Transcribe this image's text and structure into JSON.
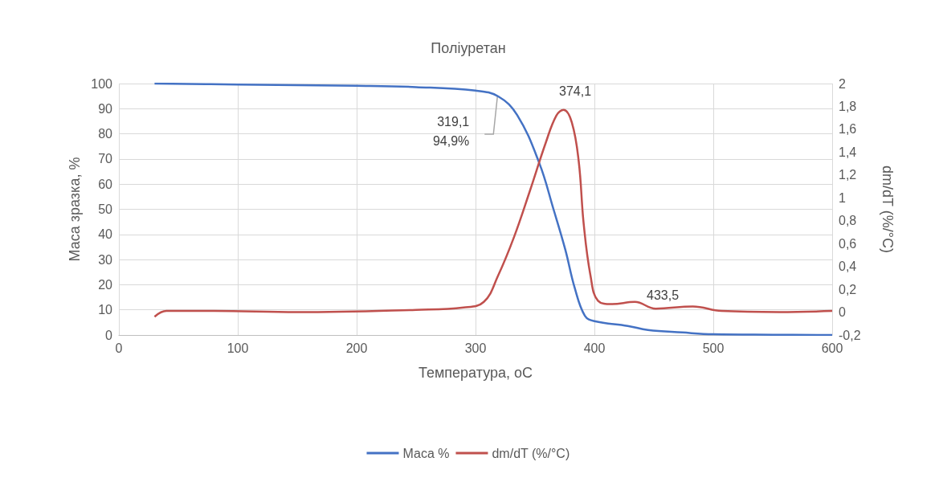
{
  "chart_data": {
    "type": "line",
    "title": "Поліуретан",
    "xlabel": "Температура, оС",
    "ylabel": "Маса зразка, %",
    "y2label": "dm/dT (%/°C)",
    "xlim": [
      0,
      600
    ],
    "xticks": [
      0,
      100,
      200,
      300,
      400,
      500,
      600
    ],
    "ylim": [
      0,
      100
    ],
    "yticks": [
      0,
      10,
      20,
      30,
      40,
      50,
      60,
      70,
      80,
      90,
      100
    ],
    "y2lim": [
      -0.2,
      2
    ],
    "y2ticks": [
      {
        "value": -0.2,
        "label": "-0,2"
      },
      0,
      {
        "value": 0.2,
        "label": "0,2"
      },
      {
        "value": 0.4,
        "label": "0,4"
      },
      {
        "value": 0.6,
        "label": "0,6"
      },
      {
        "value": 0.8,
        "label": "0,8"
      },
      1,
      {
        "value": 1.2,
        "label": "1,2"
      },
      {
        "value": 1.4,
        "label": "1,4"
      },
      {
        "value": 1.6,
        "label": "1,6"
      },
      {
        "value": 1.8,
        "label": "1,8"
      },
      2
    ],
    "grid": true,
    "legend": "bottom",
    "annotations": [
      {
        "text": "319,1\n94,9%",
        "x": 319.1,
        "y": 94.9
      },
      "374,1",
      "433,5"
    ],
    "series": [
      {
        "name": "Маса %",
        "color": "#4472c4",
        "x": [
          30,
          100,
          200,
          250,
          300,
          319.1,
          335,
          353.6,
          365.6,
          375.5,
          383.4,
          392,
          400,
          428,
          445,
          474,
          500,
          550,
          600
        ],
        "values": [
          100,
          99.6,
          99.1,
          98.6,
          97.2,
          94.9,
          87.5,
          68.4,
          50,
          34,
          18.8,
          7.6,
          5.5,
          3.6,
          2,
          1,
          0.3,
          0.1,
          0
        ]
      },
      {
        "name": "dm/dT (%/°C)",
        "color": "#c0504d",
        "axis": "y2",
        "x": [
          30,
          40,
          80,
          150,
          250,
          290,
          307,
          319,
          332.5,
          345.7,
          359,
          368,
          374.1,
          381,
          386.8,
          391,
          396.7,
          403,
          414.6,
          434,
          451.6,
          482.8,
          507,
          555.6,
          600
        ],
        "values": [
          -0.04,
          0.01,
          0.01,
          0.0,
          0.02,
          0.04,
          0.09,
          0.32,
          0.66,
          1.06,
          1.48,
          1.72,
          1.77,
          1.66,
          1.32,
          0.77,
          0.32,
          0.1,
          0.07,
          0.09,
          0.03,
          0.05,
          0.01,
          0,
          0.01
        ]
      }
    ]
  }
}
